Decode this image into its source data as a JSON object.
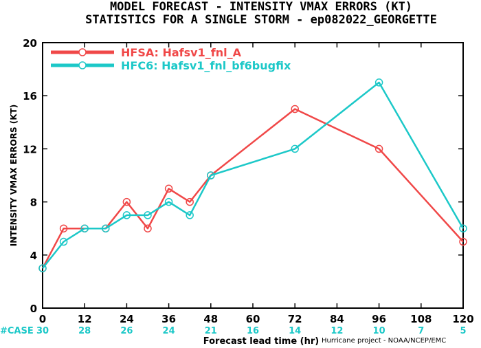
{
  "header": {
    "title_line1": "MODEL FORECAST - INTENSITY VMAX ERRORS (KT)",
    "title_line2": "STATISTICS FOR A SINGLE STORM - ep082022_GEORGETTE"
  },
  "footer": {
    "credit": "Hurricane project - NOAA/NCEP/EMC"
  },
  "chart_data": {
    "type": "line",
    "title": "MODEL FORECAST - INTENSITY VMAX ERRORS (KT)",
    "subtitle": "STATISTICS FOR A SINGLE STORM - ep082022_GEORGETTE",
    "xlabel": "Forecast lead time (hr)",
    "ylabel": "INTENSITY VMAX ERRORS (KT)",
    "xlim": [
      0,
      120
    ],
    "ylim": [
      0,
      20
    ],
    "xticks": [
      0,
      12,
      24,
      36,
      48,
      60,
      72,
      84,
      96,
      108,
      120
    ],
    "yticks": [
      0,
      4,
      8,
      12,
      16,
      20
    ],
    "grid": false,
    "legend": "top-left",
    "cases_label": "#CASE",
    "cases": [
      "30",
      "28",
      "26",
      "24",
      "21",
      "16",
      "14",
      "12",
      "10",
      "7",
      "5"
    ],
    "series": [
      {
        "name": "HFSA: Hafsv1_fnl_A",
        "color": "#f04848",
        "x": [
          0,
          6,
          12,
          18,
          24,
          30,
          36,
          42,
          48,
          72,
          96,
          120
        ],
        "y": [
          3,
          6,
          6,
          6,
          8,
          6,
          9,
          8,
          10,
          15,
          12,
          5
        ]
      },
      {
        "name": "HFC6: Hafsv1_fnl_bf6bugfix",
        "color": "#1cc8c8",
        "x": [
          0,
          6,
          12,
          18,
          24,
          30,
          36,
          42,
          48,
          72,
          96,
          120
        ],
        "y": [
          3,
          5,
          6,
          6,
          7,
          7,
          8,
          7,
          10,
          12,
          17,
          6
        ]
      }
    ]
  }
}
